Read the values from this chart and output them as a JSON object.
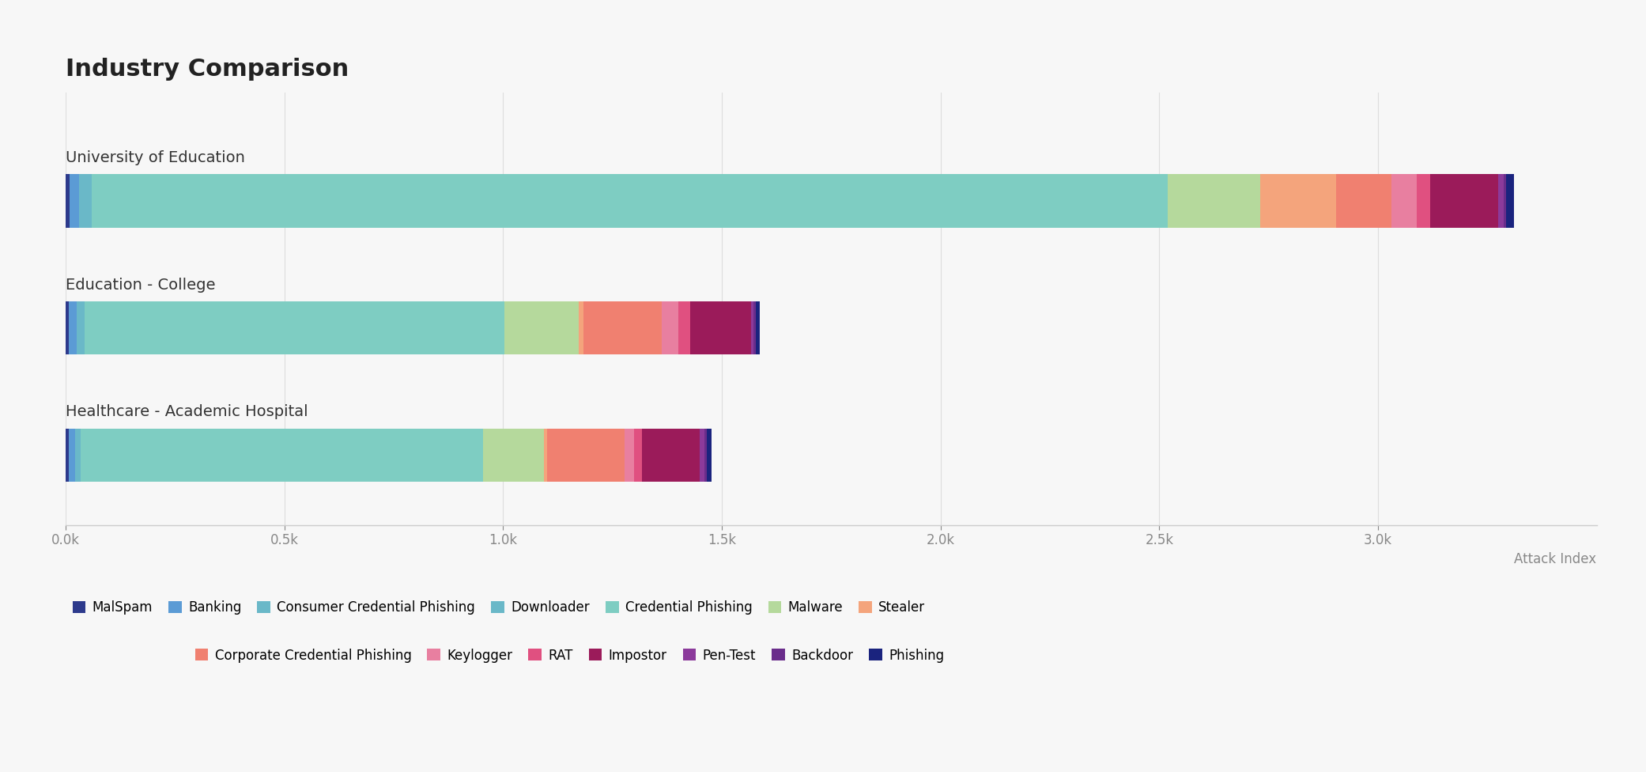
{
  "title": "Industry Comparison",
  "categories": [
    "University of Education",
    "Education - College",
    "Healthcare - Academic Hospital"
  ],
  "xlabel": "Attack Index",
  "threat_types": [
    "MalSpam",
    "Banking",
    "Consumer Credential Phishing",
    "Downloader",
    "Credential Phishing",
    "Malware",
    "Stealer",
    "Corporate Credential Phishing",
    "Keylogger",
    "RAT",
    "Impostor",
    "Pen-Test",
    "Backdoor",
    "Phishing"
  ],
  "colors": {
    "MalSpam": "#2d3a8c",
    "Banking": "#5b9bd5",
    "Consumer Credential Phishing": "#6ab8c8",
    "Downloader": "#6ab8c8",
    "Credential Phishing": "#7ecdc2",
    "Malware": "#b5d99c",
    "Stealer": "#f4a47c",
    "Corporate Credential Phishing": "#f08070",
    "Keylogger": "#e87fa0",
    "RAT": "#e05080",
    "Impostor": "#9b1b5a",
    "Pen-Test": "#8b3a9b",
    "Backdoor": "#6a2d8b",
    "Phishing": "#1a237e"
  },
  "data": {
    "University of Education": {
      "MalSpam": 8,
      "Banking": 22,
      "Consumer Credential Phishing": 30,
      "Credential Phishing": 2460,
      "Malware": 210,
      "Stealer": 175,
      "Corporate Credential Phishing": 125,
      "Keylogger": 58,
      "RAT": 32,
      "Impostor": 155,
      "Pen-Test": 12,
      "Backdoor": 6,
      "Phishing": 18
    },
    "Education - College": {
      "MalSpam": 6,
      "Banking": 18,
      "Consumer Credential Phishing": 18,
      "Credential Phishing": 960,
      "Malware": 170,
      "Stealer": 12,
      "Corporate Credential Phishing": 178,
      "Keylogger": 38,
      "RAT": 28,
      "Impostor": 138,
      "Pen-Test": 6,
      "Backdoor": 5,
      "Phishing": 10
    },
    "Healthcare - Academic Hospital": {
      "MalSpam": 6,
      "Banking": 16,
      "Consumer Credential Phishing": 12,
      "Credential Phishing": 920,
      "Malware": 140,
      "Stealer": 6,
      "Corporate Credential Phishing": 178,
      "Keylogger": 22,
      "RAT": 18,
      "Impostor": 132,
      "Pen-Test": 10,
      "Backdoor": 5,
      "Phishing": 12
    }
  },
  "xlim": [
    0,
    3500
  ],
  "xticks": [
    0,
    500,
    1000,
    1500,
    2000,
    2500,
    3000
  ],
  "xtick_labels": [
    "0.0k",
    "0.5k",
    "1.0k",
    "1.5k",
    "2.0k",
    "2.5k",
    "3.0k"
  ],
  "background_color": "#f7f7f7",
  "bar_height": 0.42,
  "title_fontsize": 22,
  "label_fontsize": 14,
  "tick_fontsize": 12,
  "legend_fontsize": 12,
  "legend_row1": [
    "MalSpam",
    "Banking",
    "Consumer Credential Phishing",
    "Downloader",
    "Credential Phishing",
    "Malware",
    "Stealer"
  ],
  "legend_row2": [
    "Corporate Credential Phishing",
    "Keylogger",
    "RAT",
    "Impostor",
    "Pen-Test",
    "Backdoor",
    "Phishing"
  ]
}
